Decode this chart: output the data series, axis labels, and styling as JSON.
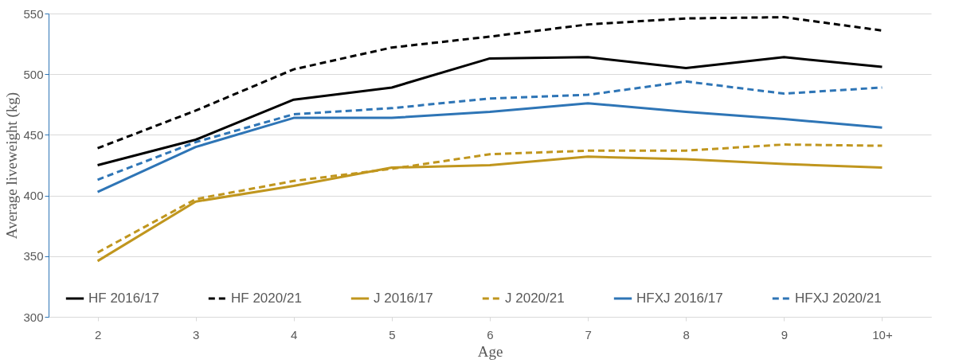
{
  "chart_data": {
    "type": "line",
    "xlabel": "Age",
    "ylabel": "Average liveweight (kg)",
    "categories": [
      "2",
      "3",
      "4",
      "5",
      "6",
      "7",
      "8",
      "9",
      "10+"
    ],
    "ylim": [
      300,
      550
    ],
    "yticks": [
      300,
      350,
      400,
      450,
      500,
      550
    ],
    "grid": "y",
    "legend": "bottom",
    "marker": "none",
    "series": [
      {
        "name": "HF 2016/17",
        "color": "#000000",
        "line_style": "solid",
        "values": [
          425,
          446,
          479,
          489,
          513,
          514,
          505,
          514,
          506
        ]
      },
      {
        "name": "HF 2020/21",
        "color": "#000000",
        "line_style": "dashed",
        "values": [
          439,
          470,
          504,
          522,
          531,
          541,
          546,
          547,
          536
        ]
      },
      {
        "name": "J 2016/17",
        "color": "#c0961e",
        "line_style": "solid",
        "values": [
          346,
          395,
          408,
          423,
          425,
          432,
          430,
          426,
          423
        ]
      },
      {
        "name": "J 2020/21",
        "color": "#c0961e",
        "line_style": "dashed",
        "values": [
          353,
          397,
          412,
          422,
          434,
          437,
          437,
          442,
          441
        ]
      },
      {
        "name": "HFXJ 2016/17",
        "color": "#2e75b6",
        "line_style": "solid",
        "values": [
          403,
          440,
          464,
          464,
          469,
          476,
          469,
          463,
          456
        ]
      },
      {
        "name": "HFXJ 2020/21",
        "color": "#2e75b6",
        "line_style": "dashed",
        "values": [
          413,
          444,
          467,
          472,
          480,
          483,
          494,
          484,
          489
        ]
      }
    ]
  }
}
